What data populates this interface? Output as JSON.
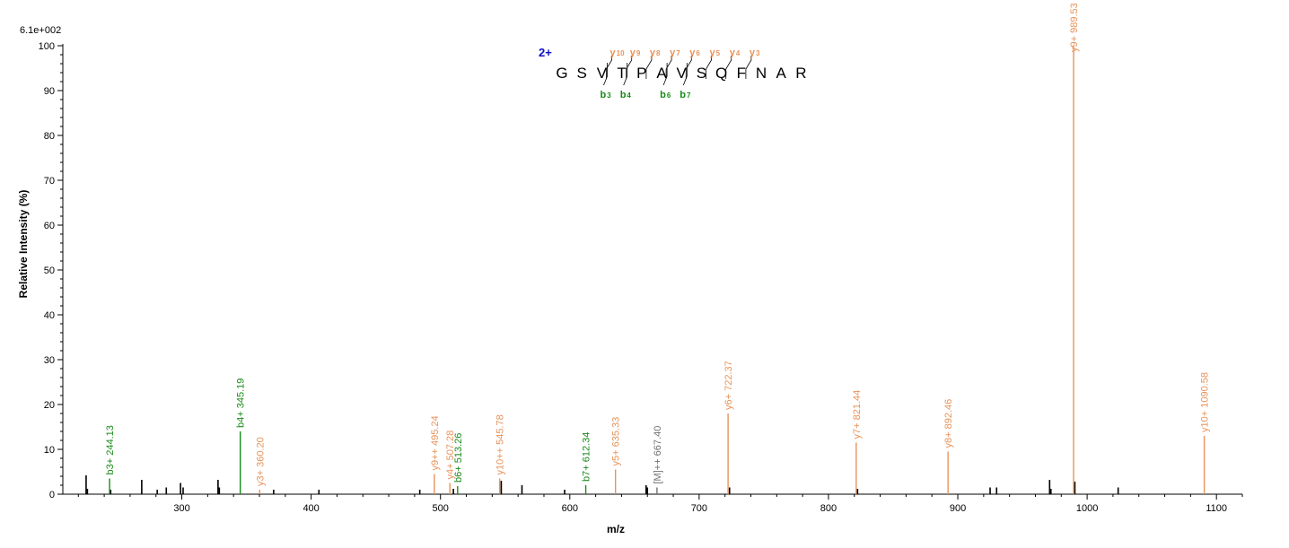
{
  "chart_data": {
    "type": "bar",
    "scale_label": "6.1e+002",
    "xlabel": "m/z",
    "ylabel": "Relative   Intensity (%)",
    "xlim": [
      208,
      1120
    ],
    "ylim": [
      0,
      100
    ],
    "x_ticks": [
      300,
      400,
      500,
      600,
      700,
      800,
      900,
      1000,
      1100
    ],
    "y_ticks": [
      0,
      10,
      20,
      30,
      40,
      50,
      60,
      70,
      80,
      90,
      100
    ],
    "grid": false,
    "colors": {
      "y_ion": "#e8935a",
      "b_ion": "#1a8a1a",
      "other_ion": "#707070",
      "noise": "#000000",
      "charge": "#1010c0",
      "axis": "#000000"
    },
    "labeled_peaks": [
      {
        "mz": 244.13,
        "intensity": 3.5,
        "label": "b3+ 244.13",
        "ion": "b"
      },
      {
        "mz": 345.19,
        "intensity": 14.0,
        "label": "b4+ 345.19",
        "ion": "b"
      },
      {
        "mz": 360.2,
        "intensity": 1.0,
        "label": "y3+ 360.20",
        "ion": "y"
      },
      {
        "mz": 495.24,
        "intensity": 4.5,
        "label": "y9++ 495.24",
        "ion": "y"
      },
      {
        "mz": 507.28,
        "intensity": 2.5,
        "label": "y4+ 507.28",
        "ion": "y"
      },
      {
        "mz": 513.26,
        "intensity": 1.8,
        "label": "b6+ 513.26",
        "ion": "b"
      },
      {
        "mz": 545.78,
        "intensity": 3.5,
        "label": "y10++ 545.78",
        "ion": "y"
      },
      {
        "mz": 612.34,
        "intensity": 2.0,
        "label": "b7+ 612.34",
        "ion": "b"
      },
      {
        "mz": 635.33,
        "intensity": 5.5,
        "label": "y5+ 635.33",
        "ion": "y"
      },
      {
        "mz": 667.4,
        "intensity": 1.5,
        "label": "[M]++ 667.40",
        "ion": "other"
      },
      {
        "mz": 722.37,
        "intensity": 18.0,
        "label": "y6+ 722.37",
        "ion": "y"
      },
      {
        "mz": 821.44,
        "intensity": 11.5,
        "label": "y7+ 821.44",
        "ion": "y"
      },
      {
        "mz": 892.46,
        "intensity": 9.5,
        "label": "y8+ 892.46",
        "ion": "y"
      },
      {
        "mz": 989.53,
        "intensity": 100.0,
        "label": "y9+ 989.53",
        "ion": "y"
      },
      {
        "mz": 1090.58,
        "intensity": 13.0,
        "label": "y10+ 1090.58",
        "ion": "y"
      }
    ],
    "unlabeled_peaks": [
      {
        "mz": 226,
        "intensity": 4.2
      },
      {
        "mz": 227,
        "intensity": 1.2
      },
      {
        "mz": 245,
        "intensity": 1.0
      },
      {
        "mz": 269,
        "intensity": 3.2
      },
      {
        "mz": 281,
        "intensity": 1.0
      },
      {
        "mz": 288,
        "intensity": 1.5
      },
      {
        "mz": 299,
        "intensity": 2.5
      },
      {
        "mz": 301,
        "intensity": 1.5
      },
      {
        "mz": 328,
        "intensity": 3.2
      },
      {
        "mz": 329,
        "intensity": 1.5
      },
      {
        "mz": 371,
        "intensity": 1.0
      },
      {
        "mz": 406,
        "intensity": 1.0
      },
      {
        "mz": 484,
        "intensity": 1.0
      },
      {
        "mz": 510,
        "intensity": 1.2
      },
      {
        "mz": 547,
        "intensity": 3.0
      },
      {
        "mz": 563,
        "intensity": 2.0
      },
      {
        "mz": 596,
        "intensity": 1.0
      },
      {
        "mz": 659,
        "intensity": 2.0
      },
      {
        "mz": 660,
        "intensity": 1.5
      },
      {
        "mz": 723.5,
        "intensity": 1.5
      },
      {
        "mz": 822.5,
        "intensity": 1.2
      },
      {
        "mz": 925,
        "intensity": 1.5
      },
      {
        "mz": 930,
        "intensity": 1.5
      },
      {
        "mz": 971,
        "intensity": 3.2
      },
      {
        "mz": 972,
        "intensity": 1.2
      },
      {
        "mz": 990.5,
        "intensity": 2.8
      },
      {
        "mz": 1024,
        "intensity": 1.5
      }
    ]
  },
  "sequence": {
    "charge": "2+",
    "residues": [
      "G",
      "S",
      "V",
      "T",
      "P",
      "A",
      "V",
      "S",
      "Q",
      "F",
      "N",
      "A",
      "R"
    ],
    "y_fragments": [
      {
        "letter": "y",
        "num": "10",
        "after": 3
      },
      {
        "letter": "y",
        "num": "9",
        "after": 4
      },
      {
        "letter": "y",
        "num": "8",
        "after": 5
      },
      {
        "letter": "y",
        "num": "7",
        "after": 6
      },
      {
        "letter": "y",
        "num": "6",
        "after": 7
      },
      {
        "letter": "y",
        "num": "5",
        "after": 8
      },
      {
        "letter": "y",
        "num": "4",
        "after": 9
      },
      {
        "letter": "y",
        "num": "3",
        "after": 10
      }
    ],
    "b_fragments": [
      {
        "letter": "b",
        "num": "3",
        "after": 3
      },
      {
        "letter": "b",
        "num": "4",
        "after": 4
      },
      {
        "letter": "b",
        "num": "6",
        "after": 6
      },
      {
        "letter": "b",
        "num": "7",
        "after": 7
      }
    ]
  }
}
